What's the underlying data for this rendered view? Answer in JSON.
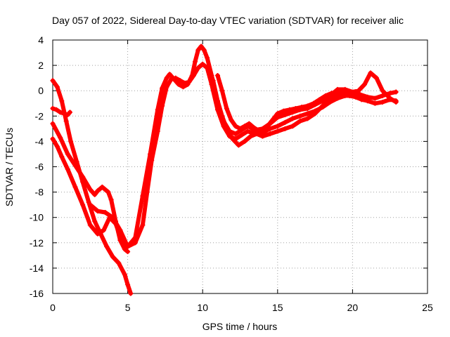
{
  "chart_data": {
    "type": "scatter",
    "title": "Day 057 of 2022, Sidereal Day-to-day VTEC variation (SDTVAR) for receiver alic",
    "xlabel": "GPS time / hours",
    "ylabel": "SDTVAR / TECUs",
    "xlim": [
      0,
      25
    ],
    "ylim": [
      -16,
      4
    ],
    "x_ticks": [
      0,
      5,
      10,
      15,
      20,
      25
    ],
    "y_ticks": [
      4,
      2,
      0,
      -2,
      -4,
      -6,
      -8,
      -10,
      -12,
      -14,
      -16
    ],
    "grid": true,
    "marker": "plus",
    "colors": {
      "series": "#ff0000"
    },
    "series": [
      {
        "x": [
          0.0,
          0.3,
          0.6,
          0.9,
          1.2,
          1.6,
          2.0,
          2.4,
          2.8,
          3.2,
          3.6,
          4.0,
          4.4,
          4.8,
          5.0,
          5.2
        ],
        "y": [
          0.8,
          0.3,
          -0.8,
          -2.4,
          -4.0,
          -5.6,
          -7.2,
          -8.8,
          -10.3,
          -11.3,
          -12.3,
          -13.1,
          -13.6,
          -14.5,
          -15.3,
          -16.0
        ]
      },
      {
        "x": [
          0.0,
          0.25,
          0.5,
          0.75,
          1.0,
          1.15
        ],
        "y": [
          -1.4,
          -1.5,
          -1.7,
          -1.8,
          -1.9,
          -1.7
        ]
      },
      {
        "x": [
          0.0,
          0.5,
          1.0,
          1.5,
          2.0,
          2.5,
          2.8,
          3.0,
          3.3,
          3.7,
          3.9,
          4.2,
          4.5,
          4.8,
          5.0
        ],
        "y": [
          -2.6,
          -3.7,
          -5.0,
          -5.9,
          -6.8,
          -7.8,
          -8.2,
          -7.9,
          -7.6,
          -8.0,
          -8.6,
          -10.3,
          -11.8,
          -12.5,
          -12.7
        ]
      },
      {
        "x": [
          0.0,
          0.3,
          0.6,
          1.0,
          1.5,
          2.0,
          2.5,
          3.0,
          3.4,
          3.8,
          4.2,
          4.6,
          5.0,
          5.5,
          6.0,
          6.5,
          7.0,
          7.3,
          7.6,
          7.8,
          8.1,
          8.4,
          8.7,
          9.0,
          9.3,
          9.5,
          9.7,
          9.9,
          10.1,
          10.3,
          10.6,
          11.0,
          11.4,
          11.8,
          12.2,
          12.6,
          13.0,
          13.5,
          14.0,
          14.5,
          15.0,
          15.5,
          16.0,
          16.5,
          17.0,
          17.5,
          18.0,
          18.5,
          19.0,
          19.5,
          20.0,
          20.5,
          21.0,
          21.5,
          22.0,
          22.5,
          22.9
        ],
        "y": [
          -3.8,
          -4.4,
          -5.2,
          -6.2,
          -7.6,
          -9.0,
          -10.6,
          -11.3,
          -11.0,
          -10.0,
          -10.5,
          -11.8,
          -12.3,
          -11.6,
          -8.3,
          -5.0,
          -1.5,
          0.2,
          1.0,
          1.3,
          0.9,
          0.5,
          0.3,
          0.5,
          1.2,
          2.3,
          3.2,
          3.5,
          3.2,
          2.6,
          1.2,
          -1.0,
          -2.4,
          -3.2,
          -3.4,
          -3.1,
          -2.8,
          -3.1,
          -3.0,
          -2.6,
          -2.1,
          -1.9,
          -1.7,
          -1.5,
          -1.4,
          -1.1,
          -0.8,
          -0.4,
          0.1,
          0.1,
          -0.1,
          -0.3,
          -0.5,
          -0.6,
          -0.4,
          -0.2,
          -0.1
        ]
      },
      {
        "x": [
          2.5,
          3.0,
          3.5,
          4.0,
          4.5,
          5.0,
          5.5,
          6.0,
          6.3,
          6.6,
          7.0,
          7.3,
          7.6,
          7.9,
          8.2,
          8.5,
          8.8,
          9.1,
          9.4,
          9.7,
          10.0,
          10.3,
          10.6,
          11.0,
          11.4,
          11.8,
          12.2,
          12.6,
          13.0,
          13.5,
          14.0,
          14.5,
          15.0,
          15.5,
          16.0,
          16.5,
          17.0,
          17.5,
          18.0,
          18.5,
          19.0,
          19.5,
          20.0,
          20.5,
          21.0,
          21.5,
          22.0,
          22.5,
          22.9
        ],
        "y": [
          -9.0,
          -9.5,
          -9.6,
          -10.0,
          -11.0,
          -12.3,
          -12.0,
          -10.6,
          -8.0,
          -5.5,
          -3.2,
          -1.2,
          0.3,
          0.9,
          1.0,
          0.8,
          0.6,
          0.7,
          1.2,
          1.8,
          2.1,
          1.8,
          0.5,
          -1.5,
          -2.8,
          -3.6,
          -3.8,
          -3.5,
          -3.2,
          -3.4,
          -3.3,
          -3.0,
          -2.8,
          -2.5,
          -2.2,
          -2.0,
          -1.8,
          -1.6,
          -1.3,
          -0.9,
          -0.6,
          -0.4,
          -0.4,
          -0.6,
          -0.8,
          -1.0,
          -0.9,
          -0.7,
          -0.8
        ]
      },
      {
        "x": [
          10.4,
          10.7,
          11.0,
          11.3,
          11.6,
          12.0,
          12.4,
          12.8,
          13.2,
          13.6,
          14.0,
          14.5,
          15.0,
          15.5,
          16.0,
          16.5,
          17.0,
          17.5,
          18.0,
          18.5,
          19.0,
          19.5,
          20.0,
          20.4,
          20.8,
          21.2,
          21.6,
          22.0,
          22.5,
          22.9
        ],
        "y": [
          1.8,
          0.8,
          -0.8,
          -2.0,
          -3.0,
          -3.8,
          -4.3,
          -4.0,
          -3.6,
          -3.4,
          -3.6,
          -3.4,
          -3.2,
          -3.0,
          -2.8,
          -2.4,
          -2.2,
          -1.8,
          -1.2,
          -0.6,
          -0.3,
          -0.2,
          -0.1,
          0.0,
          0.5,
          1.4,
          1.0,
          0.0,
          -0.6,
          -0.9
        ]
      },
      {
        "x": [
          11.0,
          11.3,
          11.6,
          11.9,
          12.2,
          12.5,
          12.8,
          13.1,
          13.4,
          13.8,
          14.2,
          14.6,
          15.0,
          15.4,
          15.8,
          16.2,
          16.6,
          17.0,
          17.4,
          17.8,
          18.2,
          18.6,
          19.0,
          19.4,
          19.8,
          20.2,
          20.6,
          21.0
        ],
        "y": [
          1.2,
          0.0,
          -1.4,
          -2.3,
          -2.8,
          -3.0,
          -2.8,
          -2.6,
          -2.9,
          -3.2,
          -3.0,
          -2.4,
          -1.8,
          -1.6,
          -1.5,
          -1.4,
          -1.3,
          -1.2,
          -1.0,
          -0.7,
          -0.4,
          -0.2,
          -0.1,
          -0.2,
          -0.4,
          -0.5,
          -0.7,
          -0.8
        ]
      }
    ]
  }
}
